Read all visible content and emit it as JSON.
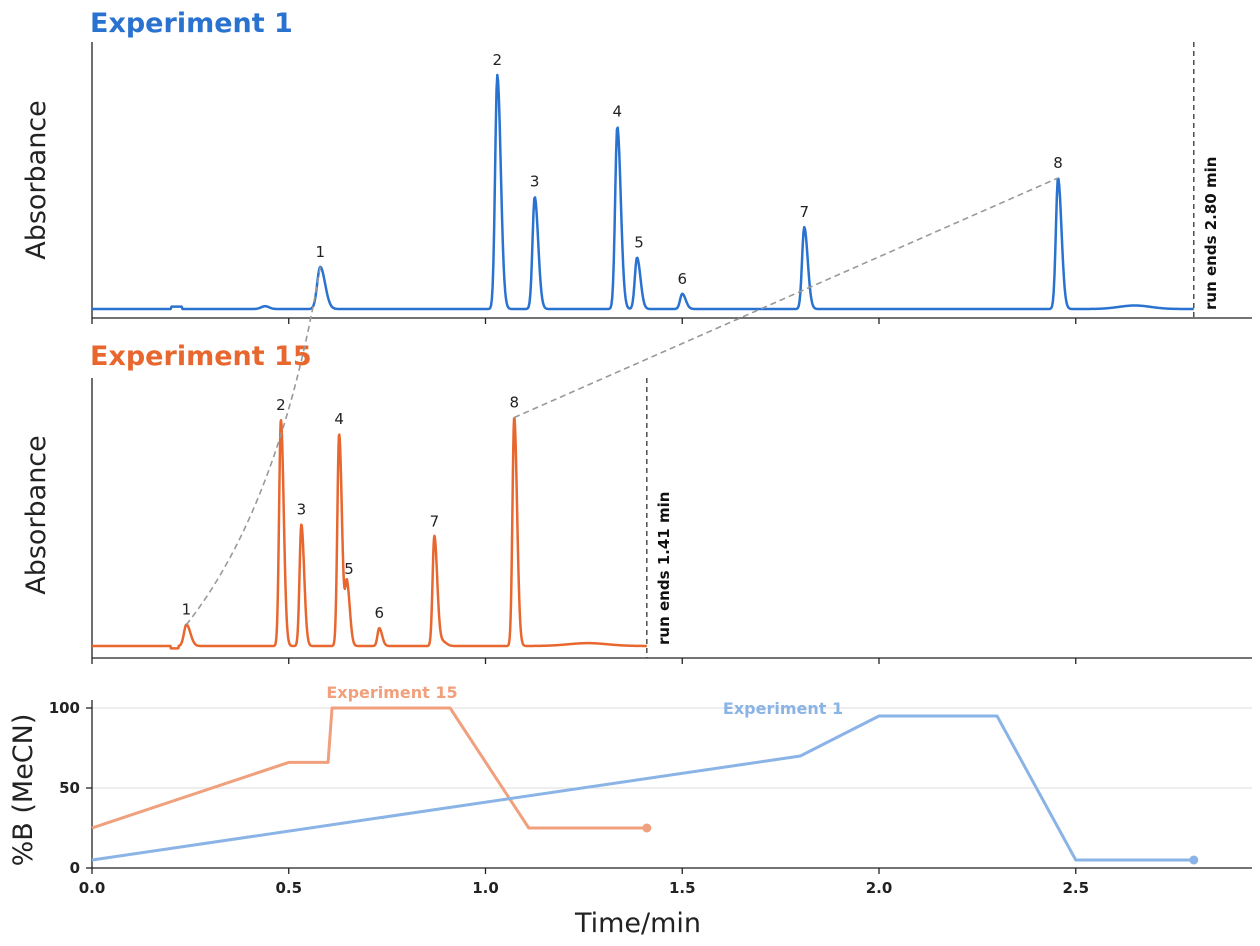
{
  "colors": {
    "exp1": "#2a72d0",
    "exp15": "#e8672f",
    "exp1_gradient": "#8ab3e6",
    "exp15_gradient": "#f0a07c",
    "connector": "#999999",
    "axis": "#222222",
    "grid": "#dddddd"
  },
  "chart_data": [
    {
      "type": "line",
      "title": "Experiment 1",
      "ylabel": "Absorbance",
      "xlim": [
        0,
        2.93
      ],
      "ylim": [
        0,
        1.05
      ],
      "run_end": {
        "x": 2.8,
        "label": "run ends 2.80 min"
      },
      "peaks": [
        {
          "label": "1",
          "x": 0.58,
          "y": 0.18
        },
        {
          "label": "2",
          "x": 1.03,
          "y": 1.0
        },
        {
          "label": "3",
          "x": 1.125,
          "y": 0.48
        },
        {
          "label": "4",
          "x": 1.335,
          "y": 0.78
        },
        {
          "label": "5",
          "x": 1.385,
          "y": 0.22
        },
        {
          "label": "6",
          "x": 1.5,
          "y": 0.065
        },
        {
          "label": "7",
          "x": 1.81,
          "y": 0.35
        },
        {
          "label": "8",
          "x": 2.455,
          "y": 0.56
        }
      ]
    },
    {
      "type": "line",
      "title": "Experiment 15",
      "ylabel": "Absorbance",
      "xlim": [
        0,
        2.93
      ],
      "ylim": [
        0,
        1.05
      ],
      "run_end": {
        "x": 1.41,
        "label": "run ends 1.41 min"
      },
      "peaks": [
        {
          "label": "1",
          "x": 0.24,
          "y": 0.09
        },
        {
          "label": "2",
          "x": 0.48,
          "y": 0.95
        },
        {
          "label": "3",
          "x": 0.532,
          "y": 0.51
        },
        {
          "label": "4",
          "x": 0.628,
          "y": 0.89
        },
        {
          "label": "5",
          "x": 0.648,
          "y": 0.26
        },
        {
          "label": "6",
          "x": 0.73,
          "y": 0.075
        },
        {
          "label": "7",
          "x": 0.87,
          "y": 0.46
        },
        {
          "label": "8",
          "x": 1.073,
          "y": 0.96
        }
      ]
    },
    {
      "type": "line",
      "ylabel": "%B (MeCN)",
      "xlabel": "Time/min",
      "xlim": [
        0,
        2.93
      ],
      "ylim": [
        0,
        105
      ],
      "xticks": [
        "0.0",
        "0.5",
        "1.0",
        "1.5",
        "2.0",
        "2.5"
      ],
      "yticks": [
        "0",
        "50",
        "100"
      ],
      "grid": true,
      "series": [
        {
          "name": "Experiment 15",
          "x": [
            0,
            0.5,
            0.6,
            0.61,
            0.91,
            1.11,
            1.41
          ],
          "y": [
            25,
            66,
            66,
            100,
            100,
            25,
            25
          ]
        },
        {
          "name": "Experiment 1",
          "x": [
            0,
            1.8,
            2.0,
            2.3,
            2.5,
            2.8
          ],
          "y": [
            5,
            70,
            95,
            95,
            5,
            5
          ]
        }
      ]
    }
  ]
}
